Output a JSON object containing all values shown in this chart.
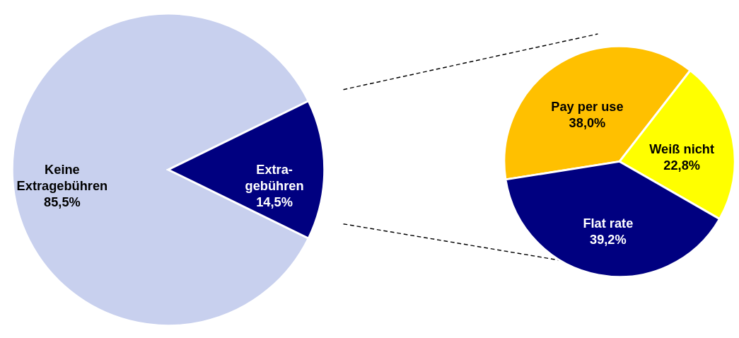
{
  "chart_data": [
    {
      "type": "pie",
      "categories": [
        "Keine Extragebühren",
        "Extra-gebühren"
      ],
      "values": [
        85.5,
        14.5
      ],
      "colors": [
        "#c8d0ee",
        "#000080"
      ],
      "value_labels": [
        "85,5%",
        "14,5%"
      ]
    },
    {
      "type": "pie",
      "categories": [
        "Pay per use",
        "Weiß  nicht",
        "Flat rate"
      ],
      "values": [
        38.0,
        22.8,
        39.2
      ],
      "colors": [
        "#ffc000",
        "#ffff00",
        "#000080"
      ],
      "value_labels": [
        "38,0%",
        "22,8%",
        "39,2%"
      ]
    }
  ]
}
